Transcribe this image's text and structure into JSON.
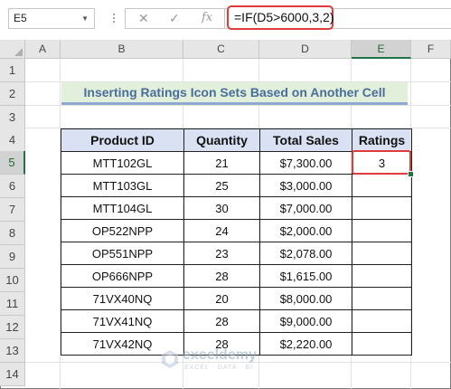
{
  "name_box": "E5",
  "formula": "=IF(D5>6000,3,2)",
  "formula_icons": {
    "cancel": "close-icon",
    "enter": "check-icon",
    "function": "fx-icon"
  },
  "columns": [
    "A",
    "B",
    "C",
    "D",
    "E",
    "F"
  ],
  "rows": [
    "1",
    "2",
    "3",
    "4",
    "5",
    "6",
    "7",
    "8",
    "9",
    "10",
    "11",
    "12",
    "13",
    "14"
  ],
  "title": "Inserting Ratings Icon Sets Based on Another Cell",
  "table": {
    "headers": [
      "Product ID",
      "Quantity",
      "Total Sales",
      "Ratings"
    ],
    "rows": [
      [
        "MTT102GL",
        "21",
        "$7,300.00",
        "3"
      ],
      [
        "MTT103GL",
        "25",
        "$3,000.00",
        ""
      ],
      [
        "MTT104GL",
        "30",
        "$7,000.00",
        ""
      ],
      [
        "OP522NPP",
        "24",
        "$2,000.00",
        ""
      ],
      [
        "OP551NPP",
        "23",
        "$2,078.00",
        ""
      ],
      [
        "OP666NPP",
        "28",
        "$1,615.00",
        ""
      ],
      [
        "71VX40NQ",
        "20",
        "$8,000.00",
        ""
      ],
      [
        "71VX41NQ",
        "28",
        "$9,000.00",
        ""
      ],
      [
        "71VX42NQ",
        "28",
        "$2,220.00",
        ""
      ]
    ]
  },
  "watermark": {
    "name": "exceldemy",
    "tagline": "EXCEL · DATA · BI"
  },
  "colors": {
    "highlight": "#e03b3b",
    "header_fill": "#d9e1f2",
    "title_fill": "#e2efda",
    "title_text": "#4a6e9c",
    "excel_green": "#217346"
  }
}
